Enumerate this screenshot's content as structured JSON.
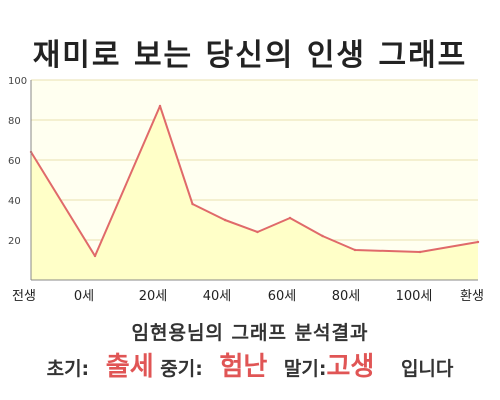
{
  "page": {
    "title": "재미로 보는 당신의 인생 그래프",
    "subtitle": "임현용님의 그래프 분석결과"
  },
  "summary": {
    "early_label": "초기:",
    "early_value": "출세",
    "mid_label": "중기:",
    "mid_value": "험난",
    "late_label": "말기:",
    "late_value": "고생",
    "ending": "입니다"
  },
  "colors": {
    "line": "#e06a6a",
    "fill": "#ffffc8",
    "plot_bg": "#fffff0",
    "grid": "#e8e0b0",
    "highlight": "#e05555"
  },
  "chart_data": {
    "type": "area",
    "x_categories": [
      "전생",
      "0세",
      "20세",
      "40세",
      "60세",
      "80세",
      "100세",
      "환생"
    ],
    "series": [
      {
        "points": [
          {
            "x": "전생",
            "y": 64
          },
          {
            "x": "0세",
            "y": 12
          },
          {
            "x": "20세",
            "y": 87
          },
          {
            "x": "30세",
            "y": 38
          },
          {
            "x": "40세",
            "y": 30
          },
          {
            "x": "50세",
            "y": 24
          },
          {
            "x": "60세",
            "y": 31
          },
          {
            "x": "70세",
            "y": 22
          },
          {
            "x": "80세",
            "y": 15
          },
          {
            "x": "100세",
            "y": 14
          },
          {
            "x": "환생",
            "y": 19
          }
        ]
      }
    ],
    "y_ticks": [
      20,
      40,
      60,
      80,
      100
    ],
    "ylim": [
      0,
      100
    ],
    "grid": true
  }
}
